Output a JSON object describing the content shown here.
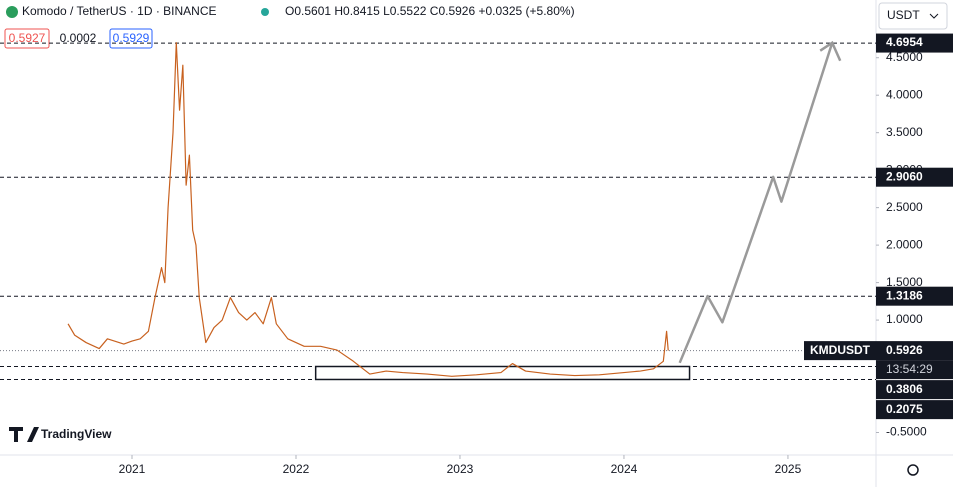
{
  "chart_data": {
    "type": "line",
    "title": "Komodo / TetherUS · 1D · BINANCE",
    "ohlc": "O0.5601 H0.8415 L0.5522 C0.5926 +0.0325 (+5.80%)",
    "bid": "0.5927",
    "spread": "0.0002",
    "ask": "0.5929",
    "currency": "USDT",
    "brand": "TradingView",
    "xlim": [
      2020.195,
      2025.537
    ],
    "ylim": [
      -0.8,
      5.27
    ],
    "xticks": [
      2021,
      2022,
      2023,
      2024,
      2025
    ],
    "yticks": [
      {
        "value": 4.5,
        "label": "4.5000"
      },
      {
        "value": 4.0,
        "label": "4.0000"
      },
      {
        "value": 3.5,
        "label": "3.5000"
      },
      {
        "value": 3.0,
        "label": "3.0000"
      },
      {
        "value": 2.5,
        "label": "2.5000"
      },
      {
        "value": 2.0,
        "label": "2.0000"
      },
      {
        "value": 1.5,
        "label": "1.5000"
      },
      {
        "value": 1.0,
        "label": "1.0000"
      },
      {
        "value": -0.5,
        "label": "-0.5000"
      }
    ],
    "grid": false,
    "series": [
      {
        "name": "KMDUSDT",
        "color": "#c8611f",
        "x": [
          2020.61,
          2020.65,
          2020.72,
          2020.8,
          2020.85,
          2020.95,
          2021.0,
          2021.05,
          2021.1,
          2021.14,
          2021.18,
          2021.2,
          2021.22,
          2021.25,
          2021.27,
          2021.29,
          2021.31,
          2021.33,
          2021.35,
          2021.37,
          2021.39,
          2021.41,
          2021.45,
          2021.5,
          2021.55,
          2021.6,
          2021.65,
          2021.7,
          2021.75,
          2021.8,
          2021.85,
          2021.88,
          2021.95,
          2022.05,
          2022.15,
          2022.25,
          2022.35,
          2022.45,
          2022.55,
          2022.65,
          2022.8,
          2022.95,
          2023.1,
          2023.25,
          2023.32,
          2023.4,
          2023.55,
          2023.7,
          2023.85,
          2024.0,
          2024.1,
          2024.18,
          2024.24,
          2024.26,
          2024.27
        ],
        "values": [
          0.95,
          0.8,
          0.7,
          0.62,
          0.75,
          0.68,
          0.72,
          0.75,
          0.85,
          1.3,
          1.7,
          1.5,
          2.5,
          3.5,
          4.7,
          3.8,
          4.4,
          2.8,
          3.2,
          2.2,
          2.0,
          1.3,
          0.7,
          0.9,
          1.0,
          1.3,
          1.1,
          1.0,
          1.1,
          0.95,
          1.3,
          0.95,
          0.75,
          0.65,
          0.65,
          0.6,
          0.45,
          0.28,
          0.32,
          0.3,
          0.28,
          0.25,
          0.27,
          0.3,
          0.42,
          0.32,
          0.28,
          0.26,
          0.27,
          0.3,
          0.32,
          0.35,
          0.45,
          0.85,
          0.5926
        ]
      }
    ],
    "projection": {
      "color": "#9a9a9a",
      "x": [
        2024.34,
        2024.51,
        2024.6,
        2024.91,
        2024.96,
        2025.27
      ],
      "values": [
        0.43,
        1.32,
        0.97,
        2.91,
        2.58,
        4.7
      ]
    },
    "range_box": {
      "x": [
        2022.12,
        2024.4
      ],
      "y": [
        0.2075,
        0.3806
      ]
    },
    "levels": [
      {
        "value": 4.6954,
        "label": "4.6954"
      },
      {
        "value": 2.906,
        "label": "2.9060"
      },
      {
        "value": 1.3186,
        "label": "1.3186"
      },
      {
        "value": 0.3806,
        "label": "0.3806"
      },
      {
        "value": 0.2075,
        "label": "0.2075"
      }
    ],
    "last_price": {
      "value": 0.5926,
      "label": "0.5926",
      "symbol": "KMDUSDT",
      "countdown": "13:54:29"
    }
  }
}
